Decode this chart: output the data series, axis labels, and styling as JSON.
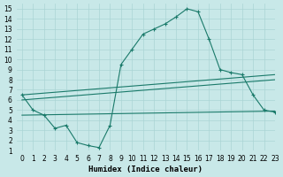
{
  "xlabel": "Humidex (Indice chaleur)",
  "xlim": [
    -0.5,
    23
  ],
  "ylim": [
    1,
    15.5
  ],
  "xticks": [
    0,
    1,
    2,
    3,
    4,
    5,
    6,
    7,
    8,
    9,
    10,
    11,
    12,
    13,
    14,
    15,
    16,
    17,
    18,
    19,
    20,
    21,
    22,
    23
  ],
  "yticks": [
    1,
    2,
    3,
    4,
    5,
    6,
    7,
    8,
    9,
    10,
    11,
    12,
    13,
    14,
    15
  ],
  "bg_color": "#c8e8e8",
  "grid_color": "#aad4d4",
  "line_color": "#1a7a6a",
  "line1_x": [
    0,
    1,
    2,
    3,
    4,
    5,
    6,
    7,
    8,
    9,
    10,
    11,
    12,
    13,
    14,
    15,
    16,
    17,
    18,
    19,
    20,
    21,
    22,
    23
  ],
  "line1_y": [
    6.5,
    5.0,
    4.5,
    3.2,
    3.5,
    1.8,
    1.5,
    1.3,
    3.5,
    9.5,
    11.0,
    12.5,
    13.0,
    13.5,
    14.2,
    15.0,
    14.7,
    12.0,
    9.0,
    8.7,
    8.5,
    6.5,
    5.0,
    4.8
  ],
  "line2_x": [
    0,
    23
  ],
  "line2_y": [
    6.5,
    8.5
  ],
  "line3_x": [
    0,
    23
  ],
  "line3_y": [
    6.0,
    8.0
  ],
  "line4_x": [
    0,
    23
  ],
  "line4_y": [
    4.5,
    4.9
  ],
  "tick_fontsize": 5.5,
  "xlabel_fontsize": 6.5
}
